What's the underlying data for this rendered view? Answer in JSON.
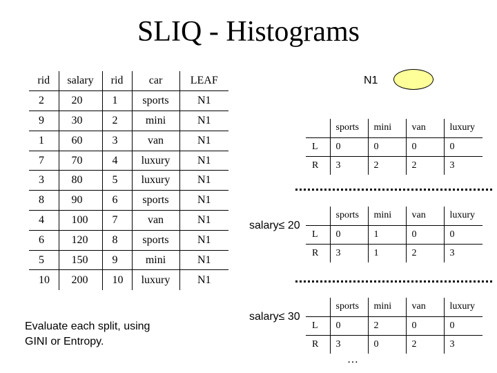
{
  "title": "SLIQ - Histograms",
  "salary_list": {
    "headers": [
      "rid",
      "salary"
    ],
    "rows": [
      [
        "2",
        "20"
      ],
      [
        "9",
        "30"
      ],
      [
        "1",
        "60"
      ],
      [
        "7",
        "70"
      ],
      [
        "3",
        "80"
      ],
      [
        "8",
        "90"
      ],
      [
        "4",
        "100"
      ],
      [
        "6",
        "120"
      ],
      [
        "5",
        "150"
      ],
      [
        "10",
        "200"
      ]
    ]
  },
  "class_list": {
    "headers": [
      "rid",
      "car",
      "LEAF"
    ],
    "rows": [
      [
        "1",
        "sports",
        "N1"
      ],
      [
        "2",
        "mini",
        "N1"
      ],
      [
        "3",
        "van",
        "N1"
      ],
      [
        "4",
        "luxury",
        "N1"
      ],
      [
        "5",
        "luxury",
        "N1"
      ],
      [
        "6",
        "sports",
        "N1"
      ],
      [
        "7",
        "van",
        "N1"
      ],
      [
        "8",
        "sports",
        "N1"
      ],
      [
        "9",
        "mini",
        "N1"
      ],
      [
        "10",
        "luxury",
        "N1"
      ]
    ]
  },
  "node": {
    "label": "N1",
    "fill": "#ffff99"
  },
  "histograms": [
    {
      "condition": "",
      "headers": [
        "",
        "sports",
        "mini",
        "van",
        "luxury"
      ],
      "rows": [
        [
          "L",
          "0",
          "0",
          "0",
          "0"
        ],
        [
          "R",
          "3",
          "2",
          "2",
          "3"
        ]
      ]
    },
    {
      "condition": "salary≤ 20",
      "headers": [
        "",
        "sports",
        "mini",
        "van",
        "luxury"
      ],
      "rows": [
        [
          "L",
          "0",
          "1",
          "0",
          "0"
        ],
        [
          "R",
          "3",
          "1",
          "2",
          "3"
        ]
      ]
    },
    {
      "condition": "salary≤ 30",
      "headers": [
        "",
        "sports",
        "mini",
        "van",
        "luxury"
      ],
      "rows": [
        [
          "L",
          "0",
          "2",
          "0",
          "0"
        ],
        [
          "R",
          "3",
          "0",
          "2",
          "3"
        ]
      ]
    }
  ],
  "ellipsis": "…",
  "note": {
    "line1": "Evaluate each split, using",
    "line2": "GINI or Entropy."
  }
}
